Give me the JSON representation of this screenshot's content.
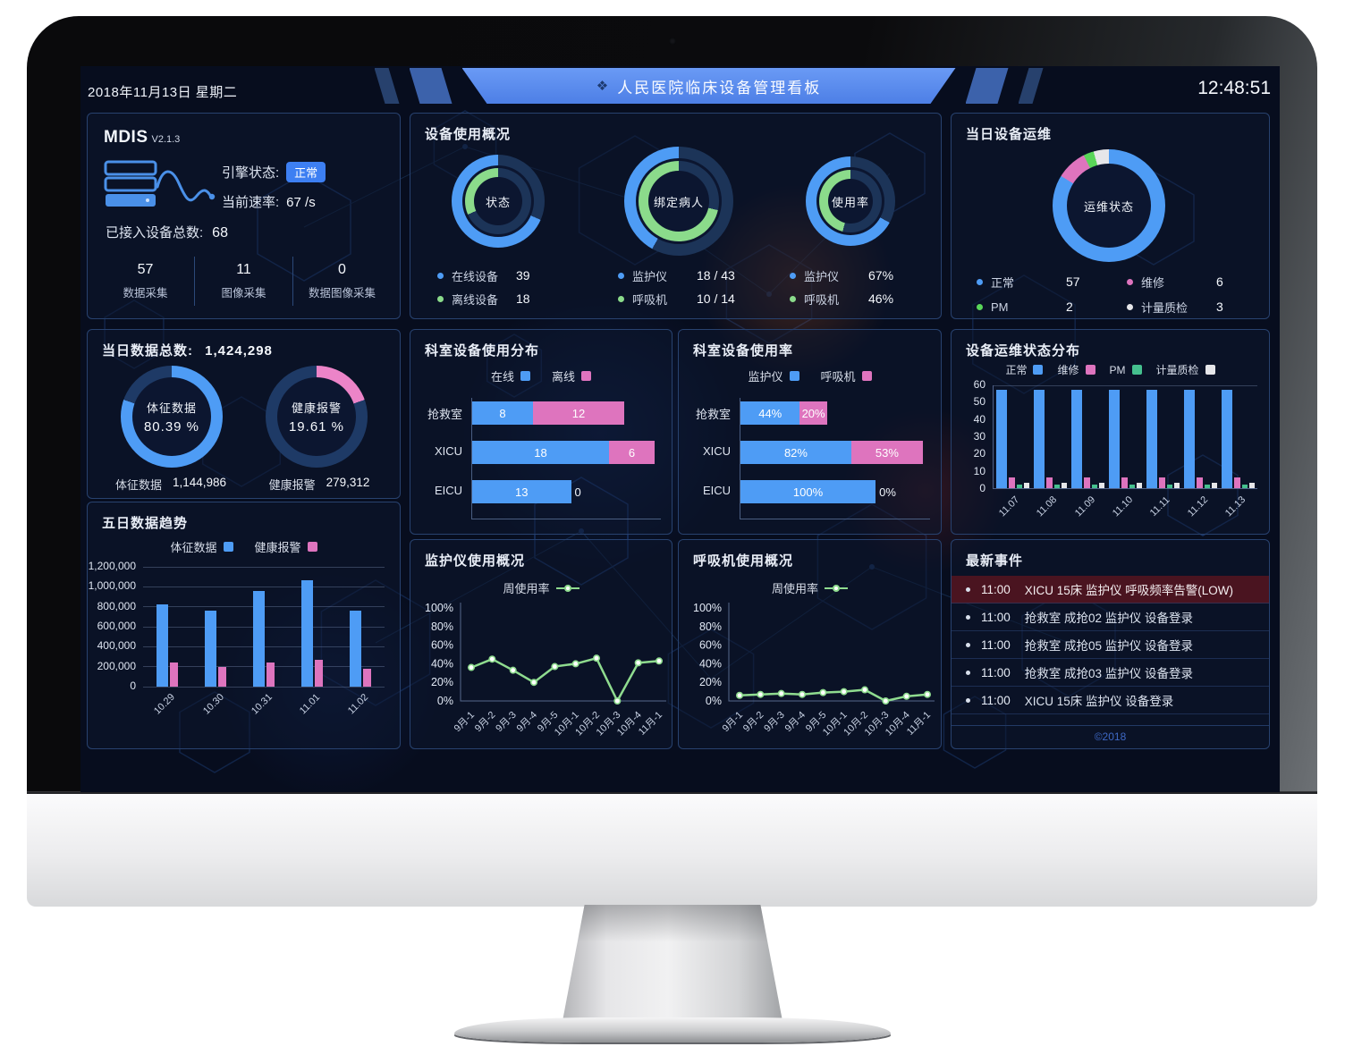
{
  "header": {
    "date": "2018年11月13日 星期二",
    "title": "人民医院临床设备管理看板",
    "time": "12:48:51",
    "logo_glyph": "❖",
    "logo_icon": "diamond-cluster-icon"
  },
  "colors": {
    "blue": "#4e9cf5",
    "green": "#8bdb8b",
    "brightGreen": "#59d659",
    "teal": "#45c08e",
    "pink": "#de74be",
    "pinkLight": "#ec84c8",
    "white": "#e6e6e9",
    "lineGreen": "#8fdc8f",
    "track": "#1c3458",
    "track2": "#1e3a66",
    "badge_blue": "#3d7ff2",
    "alert_bg": "#4a1420",
    "copyright_blue": "#3e68c4"
  },
  "panels": {
    "mdis": {
      "title": "MDIS",
      "version": "V2.1.3",
      "engine_label": "引擎状态:",
      "engine_status": "正常",
      "rate_label": "当前速率:",
      "rate_value": "67 /s",
      "devices_label": "已接入设备总数:",
      "devices_value": "68",
      "server_icon": "server-waveform-icon",
      "stats": [
        {
          "value": "57",
          "label": "数据采集"
        },
        {
          "value": "11",
          "label": "图像采集"
        },
        {
          "value": "0",
          "label": "数据图像采集"
        }
      ]
    },
    "usage_overview": {
      "title": "设备使用概况"
    },
    "ops_today": {
      "title": "当日设备运维"
    },
    "data_total": {
      "title_label": "当日数据总数:",
      "title_value": "1,424,298"
    },
    "five_day": {
      "title": "五日数据趋势"
    },
    "dept_dist": {
      "title": "科室设备使用分布"
    },
    "dept_rate": {
      "title": "科室设备使用率"
    },
    "ops_dist": {
      "title": "设备运维状态分布"
    },
    "monitor_usage": {
      "title": "监护仪使用概况"
    },
    "vent_usage": {
      "title": "呼吸机使用概况"
    },
    "events": {
      "title": "最新事件",
      "items": [
        {
          "time": "11:00",
          "text": "XICU 15床 监护仪 呼吸频率告警(LOW)",
          "alert": true
        },
        {
          "time": "11:00",
          "text": "抢救室 成抢02 监护仪 设备登录",
          "alert": false
        },
        {
          "time": "11:00",
          "text": "抢救室 成抢05 监护仪 设备登录",
          "alert": false
        },
        {
          "time": "11:00",
          "text": "抢救室 成抢03 监护仪 设备登录",
          "alert": false
        },
        {
          "time": "11:00",
          "text": "XICU 15床 监护仪 设备登录",
          "alert": false
        }
      ],
      "copyright": "©2018"
    }
  },
  "chart_data": [
    {
      "id": "device_status_donut",
      "type": "pie",
      "title": "状态",
      "rings": [
        {
          "name": "在线设备",
          "display": "39",
          "value": 39,
          "pct": 68.4,
          "color": "blue"
        },
        {
          "name": "离线设备",
          "display": "18",
          "value": 18,
          "pct": 31.6,
          "color": "green"
        }
      ]
    },
    {
      "id": "bind_patient_donut",
      "type": "pie",
      "title": "绑定病人",
      "rings": [
        {
          "name": "监护仪",
          "display": "18 / 43",
          "pct": 41.9,
          "color": "blue"
        },
        {
          "name": "呼吸机",
          "display": "10 / 14",
          "pct": 71.4,
          "color": "green"
        }
      ]
    },
    {
      "id": "usage_rate_donut",
      "type": "pie",
      "title": "使用率",
      "rings": [
        {
          "name": "监护仪",
          "display": "67%",
          "pct": 67,
          "color": "blue"
        },
        {
          "name": "呼吸机",
          "display": "46%",
          "pct": 46,
          "color": "green"
        }
      ]
    },
    {
      "id": "ops_status_donut",
      "type": "pie",
      "title": "运维状态",
      "slices": [
        {
          "name": "正常",
          "value": 57,
          "color": "blue"
        },
        {
          "name": "维修",
          "value": 6,
          "color": "pink"
        },
        {
          "name": "PM",
          "value": 2,
          "color": "brightGreen"
        },
        {
          "name": "计量质检",
          "value": 3,
          "color": "white"
        }
      ]
    },
    {
      "id": "sign_data_donut",
      "type": "pie",
      "label": "体征数据",
      "pct": 80.39,
      "pct_text": "80.39 %",
      "color": "blue",
      "footer_label": "体征数据",
      "footer_value": "1,144,986"
    },
    {
      "id": "health_alarm_donut",
      "type": "pie",
      "label": "健康报警",
      "pct": 19.61,
      "pct_text": "19.61 %",
      "color": "pinkLight",
      "footer_label": "健康报警",
      "footer_value": "279,312"
    },
    {
      "id": "five_day_trend",
      "type": "bar",
      "title": "五日数据趋势",
      "categories": [
        "10.29",
        "10.30",
        "10.31",
        "11.01",
        "11.02"
      ],
      "series": [
        {
          "name": "体征数据",
          "color": "blue",
          "values": [
            820000,
            760000,
            960000,
            1070000,
            760000
          ]
        },
        {
          "name": "健康报警",
          "color": "pink",
          "values": [
            240000,
            200000,
            240000,
            270000,
            180000
          ]
        }
      ],
      "ylim": [
        0,
        1200000
      ],
      "yticks": [
        "1,200,000",
        "1,000,000",
        "800,000",
        "600,000",
        "400,000",
        "200,000",
        "0"
      ]
    },
    {
      "id": "dept_usage_dist",
      "type": "bar",
      "title": "科室设备使用分布",
      "orientation": "horizontal-stacked",
      "categories": [
        "抢救室",
        "XICU",
        "EICU"
      ],
      "series": [
        {
          "name": "在线",
          "color": "blue",
          "values": [
            8,
            18,
            13
          ]
        },
        {
          "name": "离线",
          "color": "pink",
          "values": [
            12,
            6,
            0
          ]
        }
      ],
      "xmax": 24,
      "unit": ""
    },
    {
      "id": "dept_usage_rate",
      "type": "bar",
      "title": "科室设备使用率",
      "orientation": "horizontal-stacked",
      "categories": [
        "抢救室",
        "XICU",
        "EICU"
      ],
      "series": [
        {
          "name": "监护仪",
          "color": "blue",
          "values": [
            44,
            82,
            100
          ]
        },
        {
          "name": "呼吸机",
          "color": "pink",
          "values": [
            20,
            53,
            0
          ]
        }
      ],
      "xmax": 135,
      "unit": "%"
    },
    {
      "id": "ops_status_dist",
      "type": "bar",
      "title": "设备运维状态分布",
      "categories": [
        "11.07",
        "11.08",
        "11.09",
        "11.10",
        "11.11",
        "11.12",
        "11.13"
      ],
      "series": [
        {
          "name": "正常",
          "color": "blue",
          "values": [
            57,
            57,
            57,
            57,
            57,
            57,
            57
          ]
        },
        {
          "name": "维修",
          "color": "pink",
          "values": [
            6,
            6,
            6,
            6,
            6,
            6,
            6
          ]
        },
        {
          "name": "PM",
          "color": "teal",
          "values": [
            2,
            2,
            2,
            2,
            2,
            2,
            2
          ]
        },
        {
          "name": "计量质检",
          "color": "white",
          "values": [
            3,
            3,
            3,
            3,
            3,
            3,
            3
          ]
        }
      ],
      "ylim": [
        0,
        60
      ],
      "yticks": [
        "60",
        "50",
        "40",
        "30",
        "20",
        "10",
        "0"
      ]
    },
    {
      "id": "monitor_week_rate",
      "type": "line",
      "title": "监护仪使用概况",
      "legend": "周使用率",
      "categories": [
        "9月-1",
        "9月-2",
        "9月-3",
        "9月-4",
        "9月-5",
        "10月-1",
        "10月-2",
        "10月-3",
        "10月-4",
        "11月-1"
      ],
      "values": [
        36,
        45,
        33,
        20,
        37,
        40,
        46,
        0,
        41,
        43
      ],
      "ylim": [
        0,
        100
      ],
      "yticks": [
        "100%",
        "80%",
        "60%",
        "40%",
        "20%",
        "0%"
      ],
      "color": "lineGreen"
    },
    {
      "id": "vent_week_rate",
      "type": "line",
      "title": "呼吸机使用概况",
      "legend": "周使用率",
      "categories": [
        "9月-1",
        "9月-2",
        "9月-3",
        "9月-4",
        "9月-5",
        "10月-1",
        "10月-2",
        "10月-3",
        "10月-4",
        "11月-1"
      ],
      "values": [
        6,
        7,
        8,
        7,
        9,
        10,
        12,
        0,
        5,
        7
      ],
      "ylim": [
        0,
        100
      ],
      "yticks": [
        "100%",
        "80%",
        "60%",
        "40%",
        "20%",
        "0%"
      ],
      "color": "lineGreen"
    }
  ]
}
